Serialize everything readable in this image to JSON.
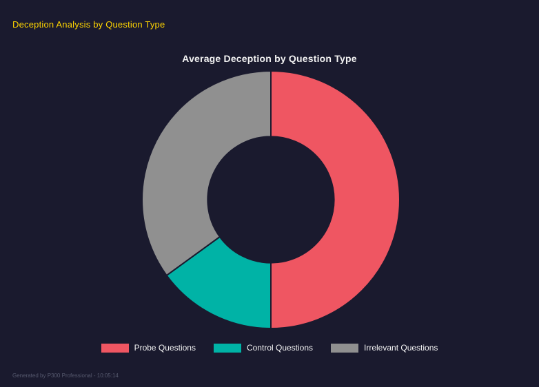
{
  "header": {
    "title": "Deception Analysis by Question Type",
    "accent_color": "#ffd500"
  },
  "chart_data": {
    "type": "pie",
    "subtype": "doughnut",
    "title": "Average Deception by Question Type",
    "labels": [
      "Probe Questions",
      "Control Questions",
      "Irrelevant Questions"
    ],
    "values": [
      50,
      15,
      35
    ],
    "colors": [
      "#ef5662",
      "#00b3a6",
      "#909090"
    ],
    "legend_position": "bottom",
    "cutout_percent": 49,
    "background_color": "#1a1a2e"
  },
  "footer": {
    "text": "Generated by P300 Professional - 10:05:14"
  }
}
